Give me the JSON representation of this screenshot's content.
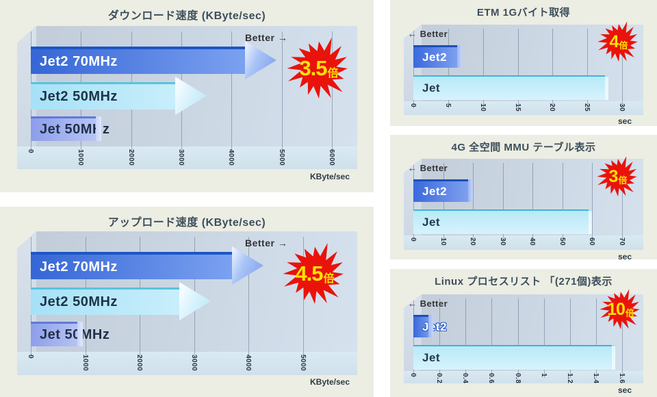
{
  "page": {
    "background": "#ffffff",
    "card_background": "#ecede3",
    "title_color": "#3d4f5c",
    "badge_red": "#e9130b",
    "badge_yellow": "#ffe104"
  },
  "chart_data": [
    {
      "id": "download-speed",
      "type": "bar",
      "orientation": "horizontal",
      "title": "ダウンロード速度 (KByte/sec)",
      "better_label": "Better →",
      "unit_label": "KByte/sec",
      "badge": {
        "number": "3.5",
        "suffix": "倍"
      },
      "xlim": [
        0,
        6000
      ],
      "ticks": [
        "0",
        "1000",
        "2000",
        "3000",
        "4000",
        "5000",
        "6000"
      ],
      "bars": [
        {
          "label": "Jet2 70MHz",
          "value": 4900,
          "style": "arrow-dark"
        },
        {
          "label": "Jet2 50MHz",
          "value": 3500,
          "style": "arrow-light"
        },
        {
          "label": "Jet 50MHz",
          "value": 1400,
          "style": "block-mid"
        }
      ]
    },
    {
      "id": "upload-speed",
      "type": "bar",
      "orientation": "horizontal",
      "title": "アップロード速度 (KByte/sec)",
      "better_label": "Better →",
      "unit_label": "KByte/sec",
      "badge": {
        "number": "4.5",
        "suffix": "倍"
      },
      "xlim": [
        0,
        5000
      ],
      "ticks": [
        "0",
        "1000",
        "2000",
        "3000",
        "4000",
        "5000"
      ],
      "bars": [
        {
          "label": "Jet2 70MHz",
          "value": 4275,
          "style": "arrow-dark"
        },
        {
          "label": "Jet2 50MHz",
          "value": 3300,
          "style": "arrow-light"
        },
        {
          "label": "Jet 50MHz",
          "value": 950,
          "style": "block-mid"
        }
      ]
    },
    {
      "id": "etm-1gbyte",
      "type": "bar",
      "orientation": "horizontal",
      "title": "ETM 1Gバイト取得",
      "better_label": "← Better",
      "unit_label": "sec",
      "badge": {
        "number": "4",
        "suffix": "倍"
      },
      "xlim": [
        0,
        30
      ],
      "ticks": [
        "0",
        "5",
        "10",
        "15",
        "20",
        "25",
        "30"
      ],
      "bars": [
        {
          "label": "Jet2",
          "value": 7,
          "style": "block-dark"
        },
        {
          "label": "Jet",
          "value": 28,
          "style": "block-light"
        }
      ]
    },
    {
      "id": "mmu-table",
      "type": "bar",
      "orientation": "horizontal",
      "title": "4G 全空間 MMU テーブル表示",
      "better_label": "← Better",
      "unit_label": "sec",
      "badge": {
        "number": "3",
        "suffix": "倍"
      },
      "xlim": [
        0,
        70
      ],
      "ticks": [
        "0",
        "10",
        "20",
        "30",
        "40",
        "50",
        "60",
        "70"
      ],
      "bars": [
        {
          "label": "Jet2",
          "value": 20,
          "style": "block-dark"
        },
        {
          "label": "Jet",
          "value": 60,
          "style": "block-light"
        }
      ]
    },
    {
      "id": "linux-process-list",
      "type": "bar",
      "orientation": "horizontal",
      "title": "Linux プロセスリスト 「(271個)表示",
      "better_label": "← Better",
      "unit_label": "sec",
      "badge": {
        "number": "10",
        "suffix": "倍"
      },
      "xlim": [
        0,
        1.6
      ],
      "ticks": [
        "0",
        "0.2",
        "0.4",
        "0.6",
        "0.8",
        "1",
        "1.2",
        "1.4",
        "1.6"
      ],
      "bars": [
        {
          "label": "Jet2",
          "value": 0.15,
          "style": "block-dark"
        },
        {
          "label": "Jet",
          "value": 1.55,
          "style": "block-light"
        }
      ]
    }
  ]
}
